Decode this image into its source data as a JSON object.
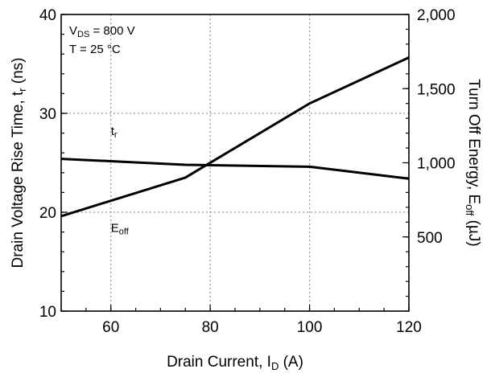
{
  "chart_data": {
    "type": "line",
    "xlabel": {
      "main": "Drain Current, I",
      "sub": "D",
      "tail": " (A)"
    },
    "ylabel_left": {
      "main": "Drain Voltage Rise Time, t",
      "sub": "r",
      "tail": " (ns)"
    },
    "ylabel_right": {
      "main": "Turn Off Energy, E",
      "sub": "off",
      "tail": " (µJ)"
    },
    "xlim": [
      50,
      120
    ],
    "ylim_left": [
      10,
      40
    ],
    "ylim_right": [
      0,
      2000
    ],
    "x_ticks": [
      {
        "value": 60,
        "label": "60"
      },
      {
        "value": 80,
        "label": "80"
      },
      {
        "value": 100,
        "label": "100"
      },
      {
        "value": 120,
        "label": "120"
      }
    ],
    "y_left_ticks": [
      {
        "value": 10,
        "label": "10"
      },
      {
        "value": 20,
        "label": "20"
      },
      {
        "value": 30,
        "label": "30"
      },
      {
        "value": 40,
        "label": "40"
      }
    ],
    "y_right_ticks": [
      {
        "value": 500,
        "label": "500"
      },
      {
        "value": 1000,
        "label": "1,000"
      },
      {
        "value": 1500,
        "label": "1,500"
      },
      {
        "value": 2000,
        "label": "2,000"
      }
    ],
    "grid": true,
    "conditions": [
      {
        "main": "V",
        "sub": "DS",
        "tail": " = 800 V"
      },
      {
        "main": "T = 25 °C",
        "sub": "",
        "tail": ""
      }
    ],
    "series": [
      {
        "name": {
          "main": "t",
          "sub": "r"
        },
        "axis": "left",
        "x": [
          50,
          75,
          100,
          120
        ],
        "y": [
          25.4,
          24.8,
          24.6,
          23.4
        ],
        "label_at": [
          60,
          27.8
        ]
      },
      {
        "name": {
          "main": "E",
          "sub": "off"
        },
        "axis": "right",
        "x": [
          50,
          75,
          100,
          120
        ],
        "y": [
          640,
          900,
          1400,
          1710
        ],
        "label_at": [
          60,
          18.0
        ]
      }
    ]
  }
}
